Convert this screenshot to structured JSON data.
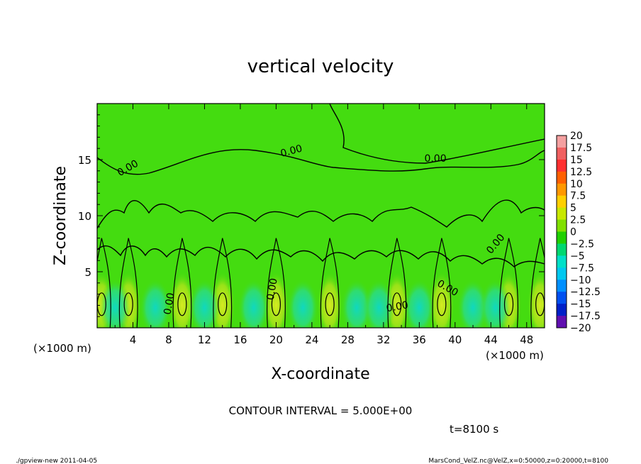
{
  "chart_data": {
    "type": "heatmap",
    "title": "vertical velocity",
    "xlabel": "X-coordinate",
    "ylabel": "Z-coordinate",
    "x_unit_left": "(×1000 m)",
    "x_unit_right": "(×1000 m)",
    "xlim": [
      0,
      50
    ],
    "ylim": [
      0,
      20
    ],
    "xticks": [
      "4",
      "8",
      "12",
      "16",
      "20",
      "24",
      "28",
      "32",
      "36",
      "40",
      "44",
      "48"
    ],
    "yticks": [
      "5",
      "10",
      "15"
    ],
    "contour_labels": [
      "0.00",
      "0.00",
      "0.00",
      "0.00",
      "0.00",
      "0.00",
      "0.00",
      "0.00"
    ],
    "contour_interval_text": "CONTOUR INTERVAL = 5.000E+00",
    "time_text": "t=8100 s",
    "colorbar": {
      "labels": [
        "20",
        "17.5",
        "15",
        "12.5",
        "10",
        "7.5",
        "5",
        "2.5",
        "0",
        "−2.5",
        "−5",
        "−7.5",
        "−10",
        "−12.5",
        "−15",
        "−17.5",
        "−20"
      ],
      "colors": [
        "#f4a0a0",
        "#f06060",
        "#ff3030",
        "#ff6000",
        "#ff9800",
        "#ffd000",
        "#c8e800",
        "#80e000",
        "#20d000",
        "#00d870",
        "#00e0c8",
        "#00c8f0",
        "#0090ff",
        "#0050f0",
        "#0020c8",
        "#1810a0",
        "#6010b0"
      ]
    },
    "field": {
      "background": "#44dc10",
      "hot_color": "#c8e41e",
      "cold_color": "#18d8a8",
      "updrafts_x": [
        0.5,
        3.5,
        9.5,
        14.0,
        20.0,
        26.0,
        33.5,
        38.5,
        46.0,
        49.5
      ],
      "downdrafts_x": [
        2.0,
        6.5,
        12.0,
        17.5,
        23.0,
        29.0,
        31.5,
        36.0,
        42.0,
        44.5
      ]
    }
  },
  "footer": {
    "left": "./gpview-new   2011-04-05",
    "right": "MarsCond_VelZ.nc@VelZ,x=0:50000,z=0:20000,t=8100"
  }
}
